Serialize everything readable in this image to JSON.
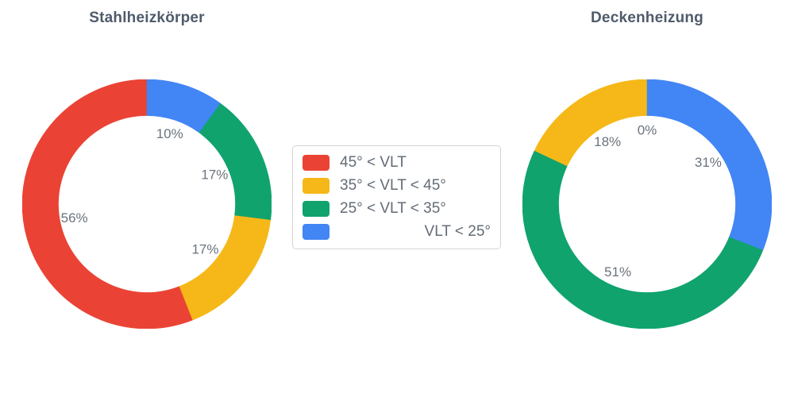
{
  "chart_data": [
    {
      "type": "pie",
      "title": "Stahlheizkörper",
      "hole": 0.71,
      "direction": "counterclockwise",
      "start_angle_deg": 0,
      "categories": [
        "45° < VLT",
        "35° < VLT < 45°",
        "25° < VLT < 35°",
        "VLT < 25°"
      ],
      "values": [
        56,
        17,
        17,
        10
      ],
      "percent_labels": [
        "56%",
        "17%",
        "17%",
        "10%"
      ],
      "unit": "%",
      "colors": [
        "#EA4335",
        "#F6B818",
        "#10A36E",
        "#4285F4"
      ]
    },
    {
      "type": "pie",
      "title": "Deckenheizung",
      "hole": 0.71,
      "direction": "counterclockwise",
      "start_angle_deg": 0,
      "categories": [
        "45° < VLT",
        "35° < VLT < 45°",
        "25° < VLT < 35°",
        "VLT < 25°"
      ],
      "values": [
        0,
        18,
        51,
        31
      ],
      "percent_labels": [
        "0%",
        "18%",
        "51%",
        "31%"
      ],
      "unit": "%",
      "colors": [
        "#EA4335",
        "#F6B818",
        "#10A36E",
        "#4285F4"
      ]
    }
  ],
  "legend": {
    "position": "center-between-charts",
    "items": [
      {
        "label": "45° < VLT",
        "color": "#EA4335",
        "align": "left"
      },
      {
        "label": "35° < VLT < 45°",
        "color": "#F6B818",
        "align": "left"
      },
      {
        "label": "25° < VLT < 35°",
        "color": "#10A36E",
        "align": "left"
      },
      {
        "label": "VLT < 25°",
        "color": "#4285F4",
        "align": "right"
      }
    ]
  },
  "style": {
    "label_color": "#6a737d",
    "title_color": "#4f5b6b",
    "background": "#ffffff"
  }
}
